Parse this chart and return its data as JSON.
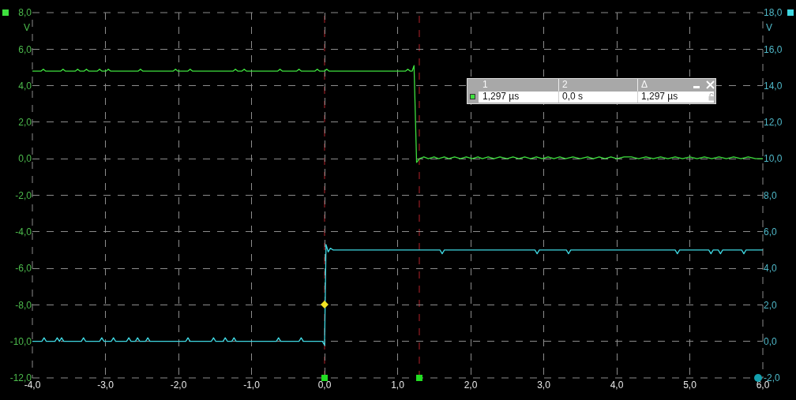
{
  "chart_data": {
    "type": "line",
    "xlim": [
      -4,
      6
    ],
    "xticks": [
      {
        "value": -4,
        "label": "-4,0"
      },
      {
        "value": -3,
        "label": "-3,0"
      },
      {
        "value": -2,
        "label": "-2,0"
      },
      {
        "value": -1,
        "label": "-1,0"
      },
      {
        "value": 0,
        "label": "0,0"
      },
      {
        "value": 1,
        "label": "1,0"
      },
      {
        "value": 2,
        "label": "2,0"
      },
      {
        "value": 3,
        "label": "3,0"
      },
      {
        "value": 4,
        "label": "4,0"
      },
      {
        "value": 5,
        "label": "5,0"
      },
      {
        "value": 6,
        "label": "6,0"
      }
    ],
    "ylim": [
      -12,
      8
    ],
    "yticks": [
      {
        "value": -12,
        "label": "-12,0"
      },
      {
        "value": -10,
        "label": "-10,0"
      },
      {
        "value": -8,
        "label": "-8,0"
      },
      {
        "value": -6,
        "label": "-6,0"
      },
      {
        "value": -4,
        "label": "-4,0"
      },
      {
        "value": -2,
        "label": "-2,0"
      },
      {
        "value": 0,
        "label": "0,0"
      },
      {
        "value": 2,
        "label": "2,0"
      },
      {
        "value": 4,
        "label": "4,0"
      },
      {
        "value": 6,
        "label": "6,0"
      },
      {
        "value": 8,
        "label": "8,0"
      }
    ],
    "y2lim": [
      -2,
      18
    ],
    "y2ticks": [
      {
        "value": -2,
        "label": "-2,0"
      },
      {
        "value": 0,
        "label": "0,0"
      },
      {
        "value": 2,
        "label": "2,0"
      },
      {
        "value": 4,
        "label": "4,0"
      },
      {
        "value": 6,
        "label": "6,0"
      },
      {
        "value": 8,
        "label": "8,0"
      },
      {
        "value": 10,
        "label": "10,0"
      },
      {
        "value": 12,
        "label": "12,0"
      },
      {
        "value": 14,
        "label": "14,0"
      },
      {
        "value": 16,
        "label": "16,0"
      },
      {
        "value": 18,
        "label": "18,0"
      }
    ],
    "ylabel": "V",
    "y2label": "V",
    "grid": true,
    "series": [
      {
        "color": "#3ee03e",
        "x": [
          -4.0,
          -3.88,
          -3.85,
          -3.82,
          -3.61,
          -3.58,
          -3.55,
          -3.41,
          -3.38,
          -3.35,
          -3.29,
          -3.26,
          -3.23,
          -3.11,
          -3.08,
          -3.05,
          -2.99,
          -2.96,
          -2.93,
          -2.55,
          -2.52,
          -2.49,
          -2.07,
          -2.04,
          -2.01,
          -1.87,
          -1.84,
          -1.81,
          -1.25,
          -1.22,
          -1.19,
          -1.13,
          -1.1,
          -1.07,
          -0.64,
          -0.61,
          -0.58,
          -0.38,
          -0.35,
          -0.32,
          -0.13,
          -0.1,
          -0.07,
          0.0,
          0.03,
          0.06,
          1.11,
          1.14,
          1.17,
          1.2,
          1.225,
          1.26,
          1.3,
          1.36,
          1.42,
          1.5,
          1.56,
          1.64,
          1.7,
          1.78,
          1.86,
          1.94,
          2.02,
          2.1,
          2.16,
          2.24,
          2.32,
          2.4,
          2.5,
          2.58,
          2.66,
          2.74,
          2.82,
          2.9,
          2.98,
          3.06,
          3.14,
          3.22,
          3.3,
          3.4,
          3.5,
          3.6,
          3.68,
          3.76,
          3.84,
          3.92,
          4.0,
          4.1,
          4.2,
          4.3,
          4.4,
          4.5,
          4.6,
          4.7,
          4.8,
          4.9,
          5.0,
          5.1,
          5.2,
          5.3,
          5.4,
          5.5,
          5.6,
          5.7,
          5.8,
          5.9,
          6.0
        ],
        "values": [
          4.8,
          4.8,
          4.9,
          4.8,
          4.8,
          4.9,
          4.8,
          4.8,
          4.9,
          4.8,
          4.8,
          4.9,
          4.8,
          4.8,
          4.9,
          4.8,
          4.8,
          4.9,
          4.8,
          4.8,
          4.9,
          4.8,
          4.8,
          4.9,
          4.8,
          4.8,
          4.9,
          4.8,
          4.8,
          4.9,
          4.8,
          4.8,
          4.9,
          4.8,
          4.8,
          4.9,
          4.8,
          4.8,
          4.9,
          4.8,
          4.8,
          4.9,
          4.8,
          4.8,
          4.9,
          4.8,
          4.8,
          4.9,
          4.8,
          4.8,
          5.1,
          -0.2,
          0.0,
          0.1,
          0.0,
          0.1,
          0.0,
          0.1,
          0.0,
          0.1,
          0.0,
          0.1,
          0.0,
          0.1,
          0.0,
          0.1,
          0.0,
          0.1,
          0.0,
          0.1,
          0.0,
          0.1,
          0.0,
          0.1,
          0.0,
          0.1,
          0.0,
          0.1,
          0.0,
          0.1,
          0.0,
          0.1,
          0.0,
          0.1,
          0.0,
          0.1,
          0.0,
          0.1,
          0.1,
          0.0,
          0.1,
          0.0,
          0.1,
          0.0,
          0.1,
          0.0,
          0.1,
          0.0,
          0.1,
          0.0,
          0.1,
          0.0,
          0.1,
          0.0,
          0.1,
          0.0,
          0.0
        ]
      },
      {
        "color": "#3fd8e2",
        "axis": "y2",
        "x": [
          -4.0,
          -3.87,
          -3.84,
          -3.81,
          -3.69,
          -3.66,
          -3.63,
          -3.6,
          -3.57,
          -3.33,
          -3.3,
          -3.27,
          -3.08,
          -3.05,
          -3.02,
          -2.92,
          -2.89,
          -2.86,
          -2.71,
          -2.68,
          -2.65,
          -2.59,
          -2.56,
          -2.53,
          -2.45,
          -2.42,
          -2.39,
          -1.9,
          -1.87,
          -1.84,
          -1.55,
          -1.52,
          -1.49,
          -1.39,
          -1.36,
          -1.33,
          -1.27,
          -1.24,
          -1.21,
          -0.66,
          -0.63,
          -0.6,
          -0.35,
          -0.32,
          -0.29,
          -0.03,
          0.0,
          0.02,
          0.05,
          0.08,
          0.12,
          1.58,
          1.61,
          1.64,
          2.88,
          2.91,
          2.94,
          3.31,
          3.34,
          3.37,
          4.8,
          4.83,
          4.86,
          5.26,
          5.29,
          5.32,
          5.39,
          5.42,
          5.45,
          5.71,
          5.74,
          5.77,
          6.0
        ],
        "values": [
          0.0,
          0.0,
          0.2,
          0.0,
          0.0,
          0.2,
          0.0,
          0.2,
          0.0,
          0.0,
          0.2,
          0.0,
          0.0,
          0.2,
          0.0,
          0.0,
          0.2,
          0.0,
          0.0,
          0.2,
          0.0,
          0.0,
          0.2,
          0.0,
          0.0,
          0.2,
          0.0,
          0.0,
          0.2,
          0.0,
          0.0,
          0.2,
          0.0,
          0.0,
          0.2,
          0.0,
          0.0,
          0.2,
          0.0,
          0.0,
          0.2,
          0.0,
          0.0,
          0.2,
          0.0,
          0.0,
          -0.2,
          5.3,
          4.9,
          5.1,
          5.0,
          5.0,
          4.8,
          5.0,
          5.0,
          4.8,
          5.0,
          5.0,
          4.8,
          5.0,
          5.0,
          4.8,
          5.0,
          5.0,
          4.8,
          5.0,
          5.0,
          4.8,
          5.0,
          5.0,
          4.8,
          5.0,
          5.0
        ]
      }
    ],
    "ref_lines": [
      {
        "axis": "x",
        "value": 1.297,
        "color": "#b4232b",
        "line_style": "dashed"
      },
      {
        "axis": "x",
        "value": 0,
        "color": "#b4232b",
        "line_style": "dashed"
      }
    ],
    "annotations": [
      "1",
      "2",
      "Δ",
      "1,297 µs",
      "0,0 s",
      "1,297 µs"
    ]
  }
}
